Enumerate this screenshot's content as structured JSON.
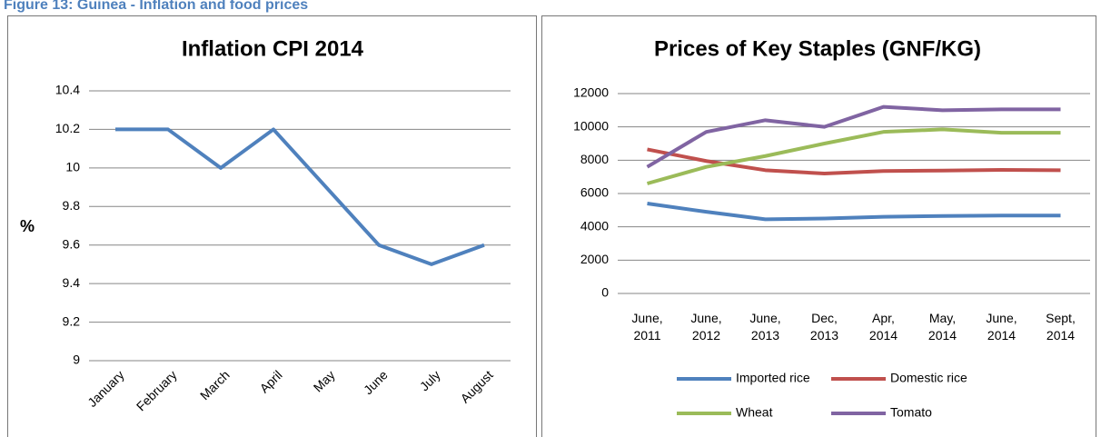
{
  "caption": "Figure 13: Guinea - Inflation and food prices",
  "chart_data": [
    {
      "type": "line",
      "title": "Inflation CPI 2014",
      "y_label": "%",
      "categories": [
        "January",
        "February",
        "March",
        "April",
        "May",
        "June",
        "July",
        "August"
      ],
      "values": [
        10.2,
        10.2,
        10,
        10.2,
        9.9,
        9.6,
        9.5,
        9.6
      ],
      "color": "#4f81bd",
      "ylim": [
        9,
        10.4
      ],
      "yticks": [
        9,
        9.2,
        9.4,
        9.6,
        9.8,
        10,
        10.2,
        10.4
      ],
      "grid": true
    },
    {
      "type": "line",
      "title": "Prices of Key Staples (GNF/KG)",
      "categories": [
        "June, 2011",
        "June, 2012",
        "June, 2013",
        "Dec, 2013",
        "Apr, 2014",
        "May, 2014",
        "June, 2014",
        "Sept, 2014"
      ],
      "series": [
        {
          "name": "Imported rice",
          "color": "#4f81bd",
          "values": [
            5400,
            4900,
            4450,
            4500,
            4600,
            4650,
            4680,
            4680
          ]
        },
        {
          "name": "Domestic rice",
          "color": "#c0504d",
          "values": [
            8650,
            7950,
            7400,
            7200,
            7350,
            7380,
            7420,
            7400
          ]
        },
        {
          "name": "Wheat",
          "color": "#9bbb59",
          "values": [
            6600,
            7600,
            8250,
            9000,
            9700,
            9850,
            9650,
            9650
          ]
        },
        {
          "name": "Tomato",
          "color": "#8064a2",
          "values": [
            7600,
            9700,
            10400,
            10000,
            11200,
            11000,
            11050,
            11050
          ]
        }
      ],
      "ylim": [
        0,
        12000
      ],
      "yticks": [
        0,
        2000,
        4000,
        6000,
        8000,
        10000,
        12000
      ],
      "grid": true,
      "legend": "bottom"
    }
  ]
}
